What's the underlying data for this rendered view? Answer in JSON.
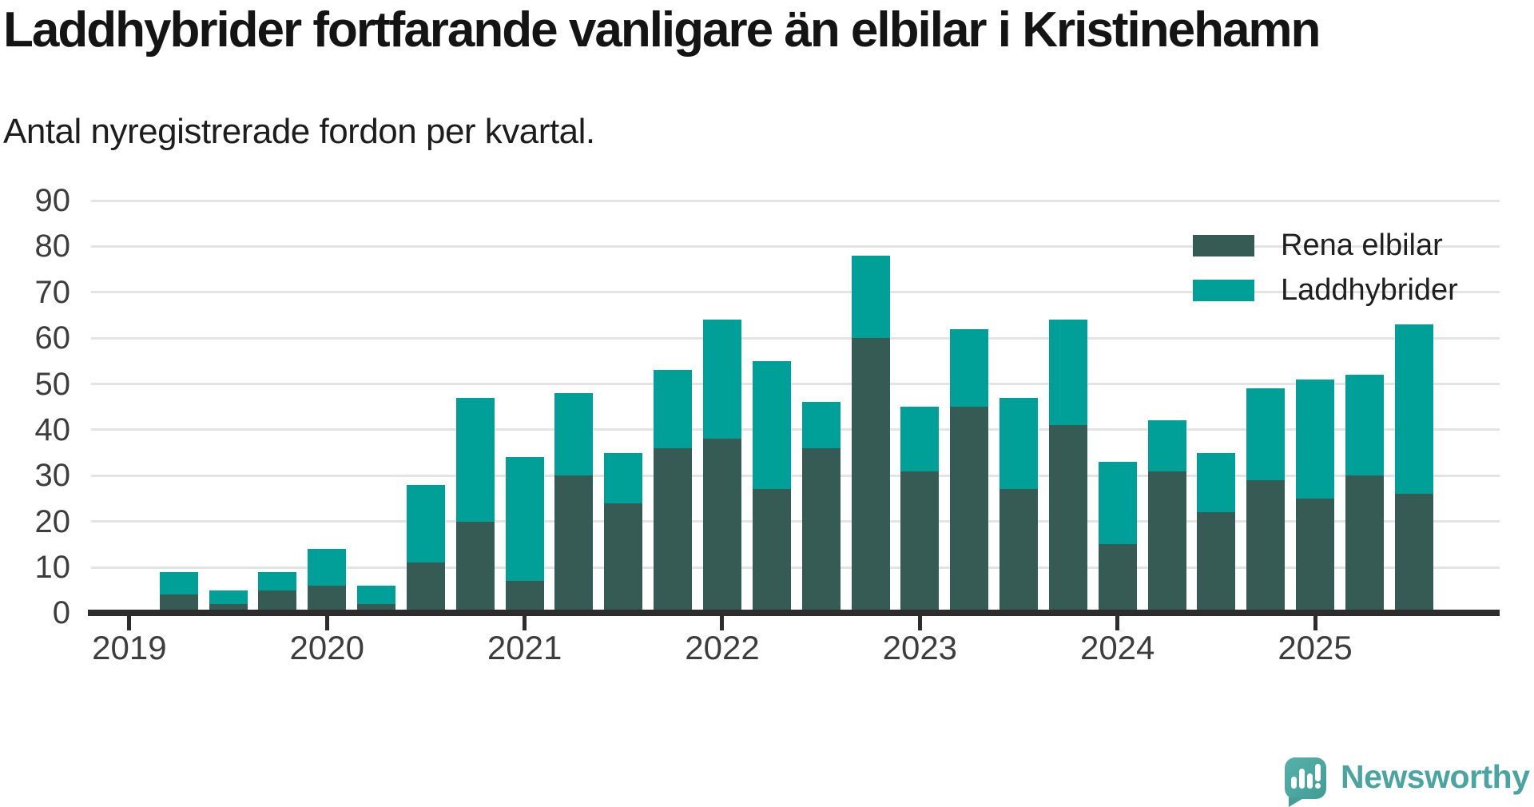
{
  "title": "Laddhybrider fortfarande vanligare än elbilar i Kristinehamn",
  "subtitle": "Antal nyregistrerade fordon per kvartal.",
  "legend": {
    "items": [
      {
        "label": "Rena elbilar",
        "color": "#365b54"
      },
      {
        "label": "Laddhybrider",
        "color": "#00a099"
      }
    ]
  },
  "branding": {
    "logo_text": "Newsworthy"
  },
  "colors": {
    "rena_elbilar": "#365b54",
    "laddhybrider": "#00a099",
    "axis": "#2d2d2d",
    "grid": "#e4e4e4",
    "tick_text": "#3d3d3d",
    "logo_teal": "#4aa5a0"
  },
  "chart_data": {
    "type": "bar",
    "stacked": true,
    "title": "Laddhybrider fortfarande vanligare än elbilar i Kristinehamn",
    "subtitle": "Antal nyregistrerade fordon per kvartal.",
    "xlabel": "",
    "ylabel": "",
    "ylim": [
      0,
      90
    ],
    "yticks": [
      0,
      10,
      20,
      30,
      40,
      50,
      60,
      70,
      80,
      90
    ],
    "grid": true,
    "legend_position": "upper right",
    "x": [
      "2019 Q1",
      "2019 Q2",
      "2019 Q3",
      "2019 Q4",
      "2020 Q1",
      "2020 Q2",
      "2020 Q3",
      "2020 Q4",
      "2021 Q1",
      "2021 Q2",
      "2021 Q3",
      "2021 Q4",
      "2022 Q1",
      "2022 Q2",
      "2022 Q3",
      "2022 Q4",
      "2023 Q1",
      "2023 Q2",
      "2023 Q3",
      "2023 Q4",
      "2024 Q1",
      "2024 Q2",
      "2024 Q3",
      "2024 Q4",
      "2025 Q1",
      "2025 Q2",
      "2025 Q3"
    ],
    "xticks": [
      "2019",
      "2020",
      "2021",
      "2022",
      "2023",
      "2024",
      "2025"
    ],
    "series": [
      {
        "name": "Rena elbilar",
        "color": "#365b54",
        "values": [
          0,
          4,
          2,
          5,
          6,
          2,
          11,
          20,
          7,
          30,
          24,
          36,
          38,
          27,
          36,
          60,
          31,
          45,
          27,
          41,
          15,
          31,
          22,
          29,
          25,
          30,
          26
        ]
      },
      {
        "name": "Laddhybrider",
        "color": "#00a099",
        "values": [
          0,
          5,
          3,
          4,
          8,
          4,
          17,
          27,
          27,
          18,
          11,
          17,
          26,
          28,
          10,
          18,
          14,
          17,
          20,
          23,
          18,
          11,
          13,
          20,
          26,
          22,
          37
        ]
      }
    ],
    "stack_totals": [
      0,
      9,
      5,
      9,
      14,
      6,
      28,
      47,
      34,
      48,
      35,
      53,
      64,
      55,
      46,
      78,
      45,
      62,
      47,
      64,
      33,
      42,
      35,
      49,
      51,
      52,
      63
    ]
  }
}
